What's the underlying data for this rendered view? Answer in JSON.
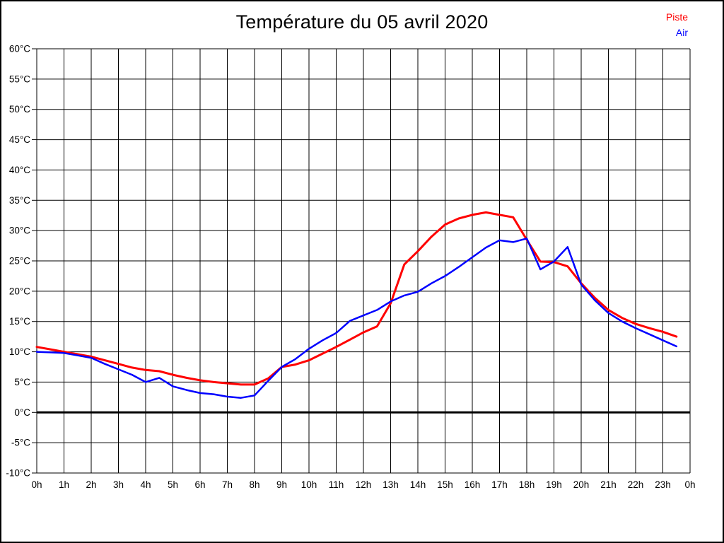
{
  "title": "Température du 05 avril 2020",
  "legend": [
    {
      "label": "Piste",
      "color": "#ff0000"
    },
    {
      "label": "Air",
      "color": "#0000ff"
    }
  ],
  "colors": {
    "background": "#ffffff",
    "grid": "#000000",
    "zero_line": "#000000",
    "text": "#000000",
    "border": "#000000"
  },
  "chart_data": {
    "type": "line",
    "title": "Température du 05 avril 2020",
    "xlabel": "",
    "ylabel": "",
    "xlim": [
      0,
      24
    ],
    "ylim": [
      -10,
      60
    ],
    "y_tick_step": 5,
    "grid": true,
    "zero_line_bold": true,
    "legend_position": "top-right",
    "x_tick_labels": [
      "0h",
      "1h",
      "2h",
      "3h",
      "4h",
      "5h",
      "6h",
      "7h",
      "8h",
      "9h",
      "10h",
      "11h",
      "12h",
      "13h",
      "14h",
      "15h",
      "16h",
      "17h",
      "18h",
      "19h",
      "20h",
      "21h",
      "22h",
      "23h",
      "0h"
    ],
    "y_tick_labels": [
      "60°C",
      "55°C",
      "50°C",
      "45°C",
      "40°C",
      "35°C",
      "30°C",
      "25°C",
      "20°C",
      "15°C",
      "10°C",
      "5°C",
      "0°C",
      "-5°C",
      "-10°C"
    ],
    "x": [
      0,
      0.5,
      1,
      1.5,
      2,
      2.5,
      3,
      3.5,
      4,
      4.5,
      5,
      5.5,
      6,
      6.5,
      7,
      7.5,
      8,
      8.5,
      9,
      9.5,
      10,
      10.5,
      11,
      11.5,
      12,
      12.5,
      13,
      13.5,
      14,
      14.5,
      15,
      15.5,
      16,
      16.5,
      17,
      17.5,
      18,
      18.5,
      19,
      19.5,
      20,
      20.5,
      21,
      21.5,
      22,
      22.5,
      23,
      23.5
    ],
    "series": [
      {
        "name": "Piste",
        "color": "#ff0000",
        "stroke_width": 3,
        "values": [
          10.8,
          10.4,
          10.0,
          9.6,
          9.2,
          8.6,
          8.0,
          7.4,
          7.0,
          6.8,
          6.2,
          5.7,
          5.3,
          5.0,
          4.8,
          4.6,
          4.6,
          5.6,
          7.5,
          7.9,
          8.6,
          9.7,
          10.8,
          12.0,
          13.2,
          14.2,
          18.0,
          24.4,
          26.6,
          29.0,
          31.0,
          32.0,
          32.6,
          33.0,
          32.6,
          32.2,
          28.5,
          24.9,
          24.8,
          24.1,
          21.3,
          18.9,
          16.9,
          15.6,
          14.6,
          13.9,
          13.3,
          12.5
        ]
      },
      {
        "name": "Air",
        "color": "#0000ff",
        "stroke_width": 2.5,
        "values": [
          10.0,
          9.9,
          9.8,
          9.4,
          9.0,
          8.0,
          7.1,
          6.2,
          5.0,
          5.7,
          4.3,
          3.7,
          3.2,
          3.0,
          2.6,
          2.4,
          2.8,
          5.2,
          7.5,
          8.8,
          10.5,
          11.9,
          13.1,
          15.1,
          16.0,
          16.9,
          18.3,
          19.3,
          19.9,
          21.3,
          22.5,
          24.0,
          25.6,
          27.2,
          28.4,
          28.1,
          28.7,
          23.6,
          24.9,
          27.3,
          21.1,
          18.5,
          16.4,
          15.0,
          13.9,
          12.9,
          11.9,
          10.9
        ]
      }
    ]
  }
}
